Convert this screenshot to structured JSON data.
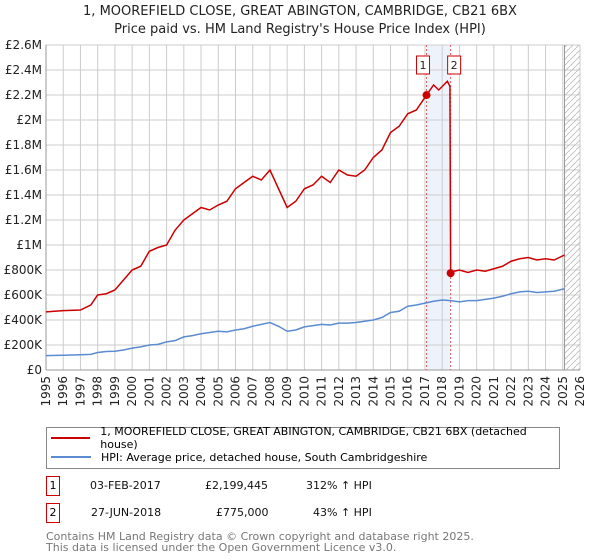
{
  "title": "1, MOOREFIELD CLOSE, GREAT ABINGTON, CAMBRIDGE, CB21 6BX",
  "subtitle": "Price paid vs. HM Land Registry's House Price Index (HPI)",
  "colors": {
    "property": "#cc0000",
    "hpi": "#5b8bd0",
    "grid": "#cccccc",
    "band": "#eef3fb"
  },
  "chart_data": {
    "type": "line",
    "xlim": [
      1995,
      2026
    ],
    "ylim": [
      0,
      2600000
    ],
    "yticks": [
      {
        "v": 0,
        "l": "£0"
      },
      {
        "v": 200000,
        "l": "£200K"
      },
      {
        "v": 400000,
        "l": "£400K"
      },
      {
        "v": 600000,
        "l": "£600K"
      },
      {
        "v": 800000,
        "l": "£800K"
      },
      {
        "v": 1000000,
        "l": "£1M"
      },
      {
        "v": 1200000,
        "l": "£1.2M"
      },
      {
        "v": 1400000,
        "l": "£1.4M"
      },
      {
        "v": 1600000,
        "l": "£1.6M"
      },
      {
        "v": 1800000,
        "l": "£1.8M"
      },
      {
        "v": 2000000,
        "l": "£2M"
      },
      {
        "v": 2200000,
        "l": "£2.2M"
      },
      {
        "v": 2400000,
        "l": "£2.4M"
      },
      {
        "v": 2600000,
        "l": "£2.6M"
      }
    ],
    "xticks": [
      "1995",
      "1996",
      "1997",
      "1998",
      "1999",
      "2000",
      "2001",
      "2002",
      "2003",
      "2004",
      "2005",
      "2006",
      "2007",
      "2008",
      "2009",
      "2010",
      "2011",
      "2012",
      "2013",
      "2014",
      "2015",
      "2016",
      "2017",
      "2018",
      "2019",
      "2020",
      "2021",
      "2022",
      "2023",
      "2024",
      "2025",
      "2026"
    ],
    "forecast_start": 2025.1,
    "series": [
      {
        "name": "1, MOOREFIELD CLOSE, GREAT ABINGTON, CAMBRIDGE, CB21 6BX (detached house)",
        "color": "#cc0000",
        "x": [
          1995,
          1996,
          1997,
          1997.6,
          1998,
          1998.5,
          1999,
          1999.5,
          2000,
          2000.5,
          2001,
          2001.5,
          2002,
          2002.5,
          2003,
          2003.5,
          2004,
          2004.5,
          2005,
          2005.5,
          2006,
          2006.5,
          2007,
          2007.5,
          2008,
          2008.5,
          2009,
          2009.5,
          2010,
          2010.5,
          2011,
          2011.5,
          2012,
          2012.5,
          2013,
          2013.5,
          2014,
          2014.5,
          2015,
          2015.5,
          2016,
          2016.5,
          2017.09,
          2017.5,
          2017.8,
          2018.3,
          2018.45,
          2018.49,
          2018.7,
          2019,
          2019.5,
          2020,
          2020.5,
          2021,
          2021.5,
          2022,
          2022.5,
          2023,
          2023.5,
          2024,
          2024.5,
          2025.1
        ],
        "y": [
          465000,
          475000,
          480000,
          520000,
          600000,
          610000,
          640000,
          720000,
          800000,
          830000,
          950000,
          980000,
          1000000,
          1120000,
          1200000,
          1250000,
          1300000,
          1280000,
          1320000,
          1350000,
          1450000,
          1500000,
          1550000,
          1520000,
          1600000,
          1450000,
          1300000,
          1350000,
          1450000,
          1480000,
          1550000,
          1500000,
          1600000,
          1560000,
          1550000,
          1600000,
          1700000,
          1760000,
          1900000,
          1950000,
          2050000,
          2080000,
          2199445,
          2280000,
          2240000,
          2310000,
          2270000,
          775000,
          790000,
          800000,
          780000,
          800000,
          790000,
          810000,
          830000,
          870000,
          890000,
          900000,
          880000,
          890000,
          880000,
          920000
        ]
      },
      {
        "name": "HPI: Average price, detached house, South Cambridgeshire",
        "color": "#5b8bd0",
        "x": [
          1995,
          1996,
          1997,
          1997.6,
          1998,
          1998.5,
          1999,
          1999.5,
          2000,
          2000.5,
          2001,
          2001.5,
          2002,
          2002.5,
          2003,
          2003.5,
          2004,
          2004.5,
          2005,
          2005.5,
          2006,
          2006.5,
          2007,
          2007.5,
          2008,
          2008.5,
          2009,
          2009.5,
          2010,
          2010.5,
          2011,
          2011.5,
          2012,
          2012.5,
          2013,
          2013.5,
          2014,
          2014.5,
          2015,
          2015.5,
          2016,
          2016.5,
          2017,
          2017.5,
          2018,
          2018.5,
          2019,
          2019.5,
          2020,
          2020.5,
          2021,
          2021.5,
          2022,
          2022.5,
          2023,
          2023.5,
          2024,
          2024.5,
          2025.1
        ],
        "y": [
          115000,
          118000,
          122000,
          125000,
          140000,
          148000,
          150000,
          160000,
          175000,
          185000,
          200000,
          205000,
          225000,
          235000,
          265000,
          275000,
          290000,
          300000,
          310000,
          305000,
          320000,
          330000,
          350000,
          365000,
          380000,
          350000,
          310000,
          320000,
          345000,
          355000,
          365000,
          360000,
          375000,
          375000,
          380000,
          390000,
          400000,
          420000,
          460000,
          470000,
          510000,
          520000,
          535000,
          550000,
          560000,
          555000,
          545000,
          555000,
          555000,
          565000,
          575000,
          590000,
          610000,
          625000,
          630000,
          620000,
          625000,
          630000,
          650000
        ]
      }
    ],
    "annotations": [
      {
        "id": "1",
        "date": "03-FEB-2017",
        "x": 2017.09,
        "price": "£2,199,445",
        "value": 2199445,
        "hpi": "312% ↑ HPI"
      },
      {
        "id": "2",
        "date": "27-JUN-2018",
        "x": 2018.49,
        "price": "£775,000",
        "value": 775000,
        "hpi": "43% ↑ HPI"
      }
    ]
  },
  "legend": {
    "property": "1, MOOREFIELD CLOSE, GREAT ABINGTON, CAMBRIDGE, CB21 6BX (detached house)",
    "hpi": "HPI: Average price, detached house, South Cambridgeshire"
  },
  "footer": {
    "line1": "Contains HM Land Registry data © Crown copyright and database right 2025.",
    "line2": "This data is licensed under the Open Government Licence v3.0."
  }
}
